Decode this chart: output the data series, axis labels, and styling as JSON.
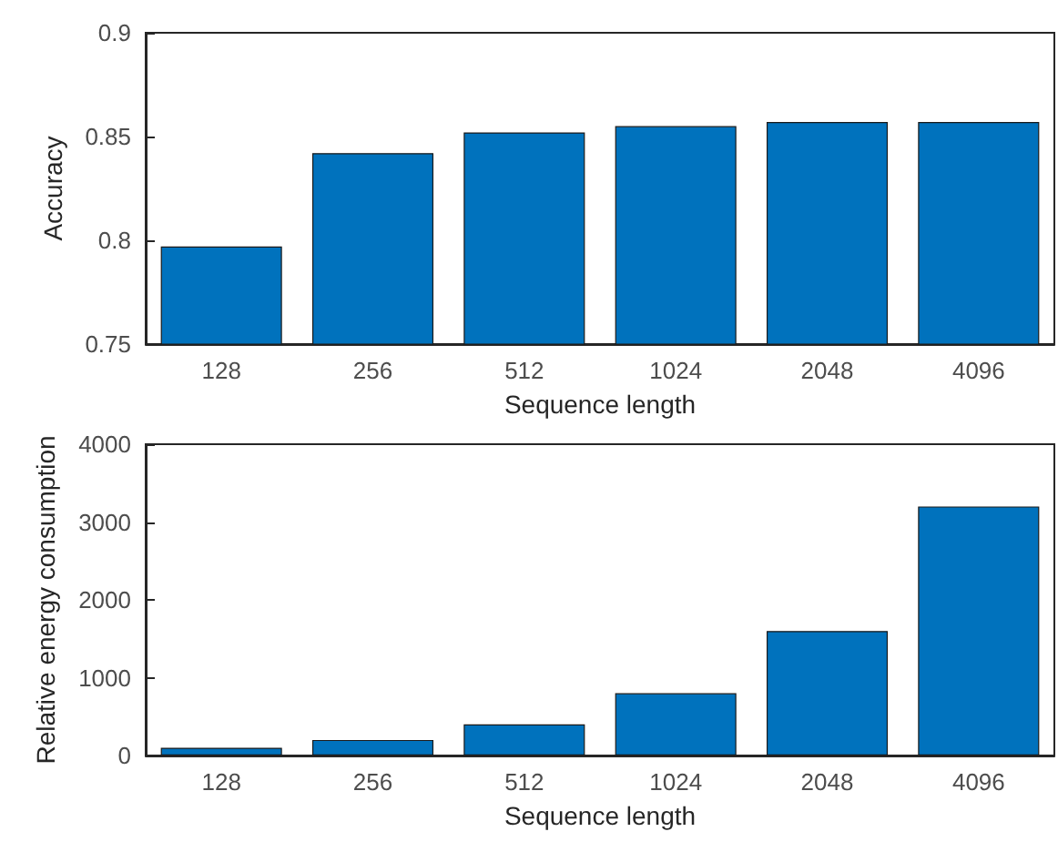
{
  "chart_data": [
    {
      "type": "bar",
      "categories": [
        "128",
        "256",
        "512",
        "1024",
        "2048",
        "4096"
      ],
      "values": [
        0.797,
        0.842,
        0.852,
        0.855,
        0.857,
        0.857
      ],
      "color": "#0072bd",
      "xlabel": "Sequence length",
      "ylabel": "Accuracy",
      "ylim": [
        0.75,
        0.9
      ],
      "yticks": [
        0.75,
        0.8,
        0.85,
        0.9
      ],
      "grid": false
    },
    {
      "type": "bar",
      "categories": [
        "128",
        "256",
        "512",
        "1024",
        "2048",
        "4096"
      ],
      "values": [
        100,
        200,
        400,
        800,
        1600,
        3200
      ],
      "color": "#0072bd",
      "xlabel": "Sequence length",
      "ylabel": "Relative energy consumption",
      "ylim": [
        0,
        4000
      ],
      "yticks": [
        0,
        1000,
        2000,
        3000,
        4000
      ],
      "grid": false
    }
  ]
}
